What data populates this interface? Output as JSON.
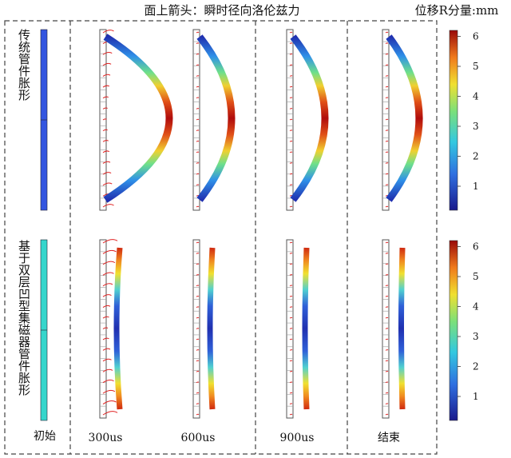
{
  "header": {
    "title": "面上箭头：瞬时径向洛伦兹力",
    "colorbar_title": "位移R分量:mm"
  },
  "rows": [
    {
      "label": "传统管件胀形",
      "initial_color": "#3355e0"
    },
    {
      "label": "基于双层凹型集磁器管件胀形",
      "initial_color": "#36d6cc"
    }
  ],
  "columns": [
    "初始",
    "300us",
    "600us",
    "900us",
    "结束"
  ],
  "colorbars": [
    {
      "ticks": [
        "1",
        "2",
        "3",
        "4",
        "5",
        "6"
      ]
    },
    {
      "ticks": [
        "1",
        "2",
        "3",
        "4",
        "5",
        "6"
      ]
    }
  ],
  "colors": {
    "colormap": [
      "#2030a0",
      "#2f6fe0",
      "#33c8e0",
      "#7be07a",
      "#f0e030",
      "#f08020",
      "#c01010",
      "#8a0a0a"
    ],
    "arrow": "#e02020",
    "frame": "#444444"
  }
}
